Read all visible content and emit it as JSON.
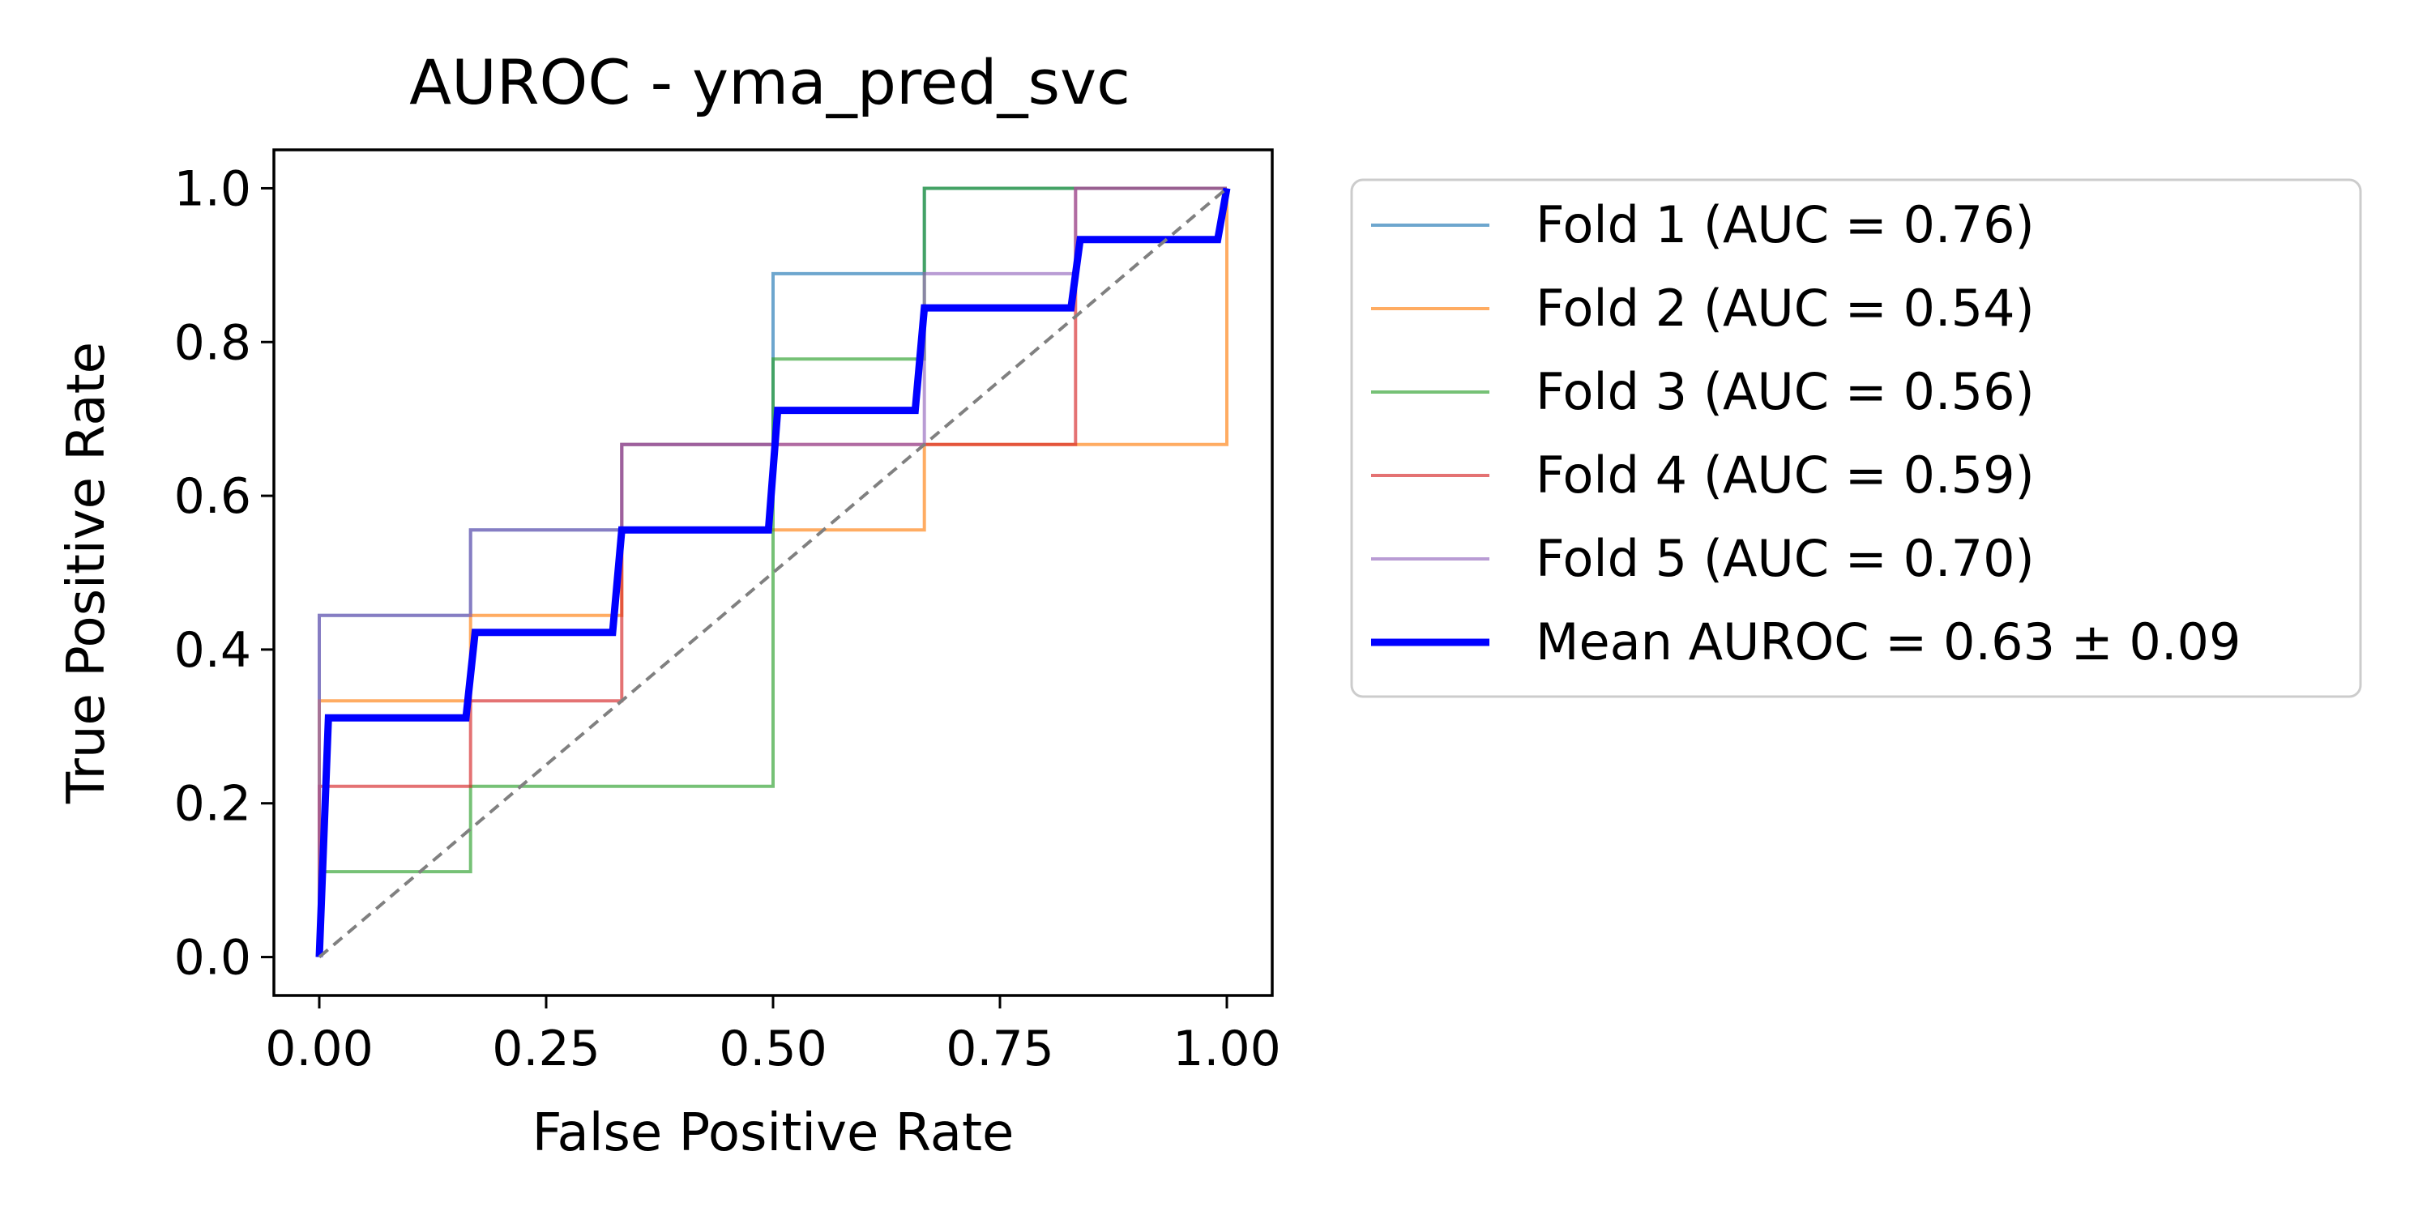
{
  "chart_data": {
    "type": "line",
    "title": "AUROC - yma_pred_svc",
    "xlabel": "False Positive Rate",
    "ylabel": "True Positive Rate",
    "xlim": [
      -0.05,
      1.05
    ],
    "ylim": [
      -0.05,
      1.05
    ],
    "xticks": [
      0.0,
      0.25,
      0.5,
      0.75,
      1.0
    ],
    "xtick_labels": [
      "0.00",
      "0.25",
      "0.50",
      "0.75",
      "1.00"
    ],
    "yticks": [
      0.0,
      0.2,
      0.4,
      0.6,
      0.8,
      1.0
    ],
    "ytick_labels": [
      "0.0",
      "0.2",
      "0.4",
      "0.6",
      "0.8",
      "1.0"
    ],
    "grid": false,
    "legend_position": "outside-right",
    "series": [
      {
        "name": "Fold 1 (AUC = 0.76)",
        "color": "#1f77b4",
        "x": [
          0,
          0,
          0.1667,
          0.1667,
          0.3333,
          0.3333,
          0.5,
          0.5,
          0.6667,
          0.6667,
          0.8333,
          0.8333,
          1.0
        ],
        "y": [
          0,
          0.4444,
          0.4444,
          0.5556,
          0.5556,
          0.6667,
          0.6667,
          0.8889,
          0.8889,
          1.0,
          1.0,
          1.0,
          1.0
        ]
      },
      {
        "name": "Fold 2 (AUC = 0.54)",
        "color": "#ff7f0e",
        "x": [
          0,
          0,
          0.1667,
          0.1667,
          0.3333,
          0.3333,
          0.5,
          0.5,
          0.6667,
          0.6667,
          1.0,
          1.0
        ],
        "y": [
          0,
          0.3333,
          0.3333,
          0.4444,
          0.4444,
          0.5556,
          0.5556,
          0.5556,
          0.5556,
          0.6667,
          0.6667,
          1.0
        ]
      },
      {
        "name": "Fold 3 (AUC = 0.56)",
        "color": "#2ca02c",
        "x": [
          0,
          0,
          0.1667,
          0.1667,
          0.5,
          0.5,
          0.6667,
          0.6667,
          1.0
        ],
        "y": [
          0,
          0.1111,
          0.1111,
          0.2222,
          0.2222,
          0.7778,
          0.7778,
          1.0,
          1.0
        ]
      },
      {
        "name": "Fold 4 (AUC = 0.59)",
        "color": "#d62728",
        "x": [
          0,
          0,
          0.1667,
          0.1667,
          0.3333,
          0.3333,
          0.6667,
          0.6667,
          0.8333,
          0.8333,
          1.0
        ],
        "y": [
          0,
          0.2222,
          0.2222,
          0.3333,
          0.3333,
          0.6667,
          0.6667,
          0.6667,
          0.6667,
          1.0,
          1.0
        ]
      },
      {
        "name": "Fold 5 (AUC = 0.70)",
        "color": "#9467bd",
        "x": [
          0,
          0,
          0.1667,
          0.1667,
          0.3333,
          0.3333,
          0.6667,
          0.6667,
          0.8333,
          0.8333,
          1.0
        ],
        "y": [
          0,
          0.4444,
          0.4444,
          0.5556,
          0.5556,
          0.6667,
          0.6667,
          0.8889,
          0.8889,
          1.0,
          1.0
        ]
      },
      {
        "name": "Mean AUROC = 0.63 ± 0.09",
        "color": "#0000ff",
        "x": [
          0,
          0.0101,
          0.1616,
          0.1717,
          0.3232,
          0.3333,
          0.4949,
          0.5051,
          0.6566,
          0.6667,
          0.8283,
          0.8384,
          0.9899,
          1.0
        ],
        "y": [
          0,
          0.3111,
          0.3111,
          0.4222,
          0.4222,
          0.5556,
          0.5556,
          0.7111,
          0.7111,
          0.8444,
          0.8444,
          0.9333,
          0.9333,
          1.0
        ]
      }
    ],
    "reference_line": {
      "x": [
        0,
        1
      ],
      "y": [
        0,
        1
      ],
      "color": "#808080",
      "style": "dashed"
    }
  }
}
